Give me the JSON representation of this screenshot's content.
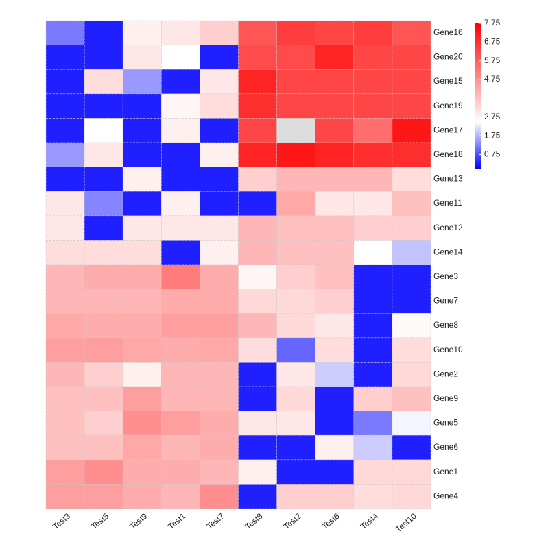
{
  "chart_data": {
    "type": "heatmap",
    "x_categories": [
      "Test3",
      "Test5",
      "Test9",
      "Test1",
      "Test7",
      "Test8",
      "Test2",
      "Test6",
      "Test4",
      "Test10"
    ],
    "y_categories": [
      "Gene16",
      "Gene20",
      "Gene15",
      "Gene19",
      "Gene17",
      "Gene18",
      "Gene13",
      "Gene11",
      "Gene12",
      "Gene14",
      "Gene3",
      "Gene7",
      "Gene8",
      "Gene10",
      "Gene2",
      "Gene9",
      "Gene5",
      "Gene6",
      "Gene1",
      "Gene4"
    ],
    "values": [
      [
        1.2,
        0.3,
        2.8,
        3.0,
        3.5,
        6.0,
        6.5,
        6.3,
        6.5,
        6.0
      ],
      [
        0.3,
        0.3,
        3.0,
        2.5,
        0.3,
        6.2,
        6.2,
        7.0,
        6.3,
        6.3
      ],
      [
        0.3,
        3.2,
        1.5,
        0.3,
        3.0,
        7.0,
        6.3,
        6.3,
        6.3,
        6.3
      ],
      [
        0.3,
        0.3,
        0.3,
        2.7,
        3.2,
        6.8,
        6.3,
        6.3,
        6.3,
        6.3
      ],
      [
        0.3,
        2.5,
        0.3,
        2.8,
        0.3,
        6.3,
        null,
        6.3,
        5.5,
        7.3
      ],
      [
        1.5,
        3.0,
        0.3,
        0.3,
        2.8,
        7.0,
        7.3,
        7.0,
        6.8,
        6.8
      ],
      [
        0.3,
        0.3,
        2.8,
        0.3,
        0.3,
        3.5,
        4.0,
        4.0,
        4.0,
        3.2
      ],
      [
        3.0,
        1.3,
        0.3,
        2.8,
        0.3,
        0.3,
        4.3,
        3.0,
        3.0,
        3.8
      ],
      [
        3.0,
        0.3,
        3.0,
        3.0,
        3.0,
        4.0,
        3.8,
        3.8,
        3.5,
        3.5
      ],
      [
        3.2,
        3.2,
        3.2,
        0.3,
        2.8,
        4.0,
        3.8,
        3.8,
        2.5,
        1.9
      ],
      [
        4.0,
        4.2,
        4.2,
        5.2,
        4.2,
        2.7,
        3.5,
        3.8,
        0.3,
        0.3
      ],
      [
        4.0,
        4.0,
        4.0,
        4.2,
        4.2,
        3.3,
        3.3,
        3.5,
        0.3,
        0.3
      ],
      [
        4.3,
        4.2,
        4.2,
        4.5,
        4.5,
        4.0,
        3.3,
        3.0,
        0.3,
        2.6
      ],
      [
        4.5,
        4.5,
        4.3,
        4.2,
        4.3,
        3.2,
        1.0,
        3.2,
        0.3,
        3.2
      ],
      [
        4.0,
        3.5,
        2.8,
        4.0,
        4.0,
        0.3,
        3.0,
        2.0,
        0.3,
        3.3
      ],
      [
        3.8,
        3.8,
        4.5,
        4.0,
        4.0,
        0.3,
        3.3,
        0.3,
        3.5,
        3.8
      ],
      [
        3.8,
        3.5,
        4.8,
        4.5,
        4.2,
        3.0,
        3.0,
        0.3,
        1.2,
        2.4
      ],
      [
        3.8,
        3.8,
        4.3,
        4.0,
        4.2,
        0.3,
        0.3,
        2.8,
        2.0,
        0.3
      ],
      [
        4.5,
        4.8,
        4.2,
        4.2,
        4.0,
        2.8,
        0.3,
        0.3,
        3.3,
        3.3
      ],
      [
        4.5,
        4.5,
        4.2,
        4.0,
        4.8,
        0.3,
        3.5,
        3.5,
        3.2,
        3.3
      ]
    ],
    "clim": [
      0,
      7.75
    ],
    "cticks": [
      0.75,
      1.75,
      2.75,
      4.75,
      5.75,
      6.75,
      7.75
    ],
    "colorscale": [
      [
        0,
        "#0000ff"
      ],
      [
        2.5,
        "#ffffff"
      ],
      [
        7.75,
        "#ff0000"
      ]
    ],
    "missing_color": "#dcdcdc"
  }
}
